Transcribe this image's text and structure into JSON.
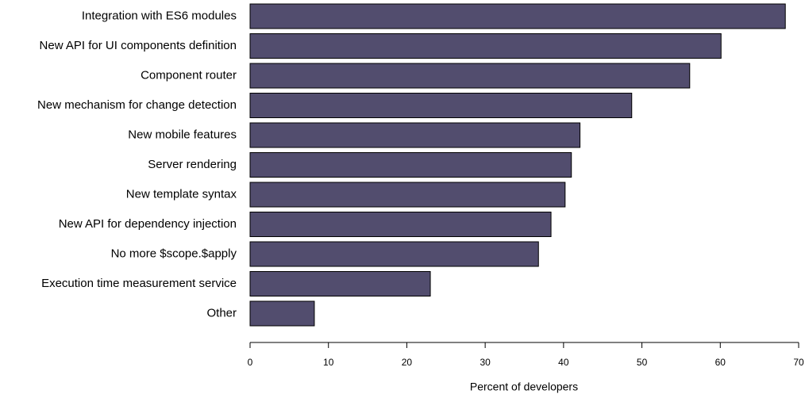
{
  "chart_data": {
    "type": "bar",
    "orientation": "horizontal",
    "categories": [
      "Integration with ES6 modules",
      "New API for UI components definition",
      "Component router",
      "New mechanism for change detection",
      "New mobile features",
      "Server rendering",
      "New template syntax",
      "New API for dependency injection",
      "No more $scope.$apply",
      "Execution time measurement service",
      "Other"
    ],
    "values": [
      68.3,
      60.1,
      56.1,
      48.7,
      42.1,
      41.0,
      40.2,
      38.4,
      36.8,
      23.0,
      8.2
    ],
    "title": "",
    "xlabel": "Percent of developers",
    "ylabel": "",
    "xlim": [
      0,
      70
    ],
    "xticks": [
      "0",
      "10",
      "20",
      "30",
      "40",
      "50",
      "60",
      "70"
    ],
    "bar_color": "#524d6e",
    "grid": false,
    "legend": "none"
  }
}
